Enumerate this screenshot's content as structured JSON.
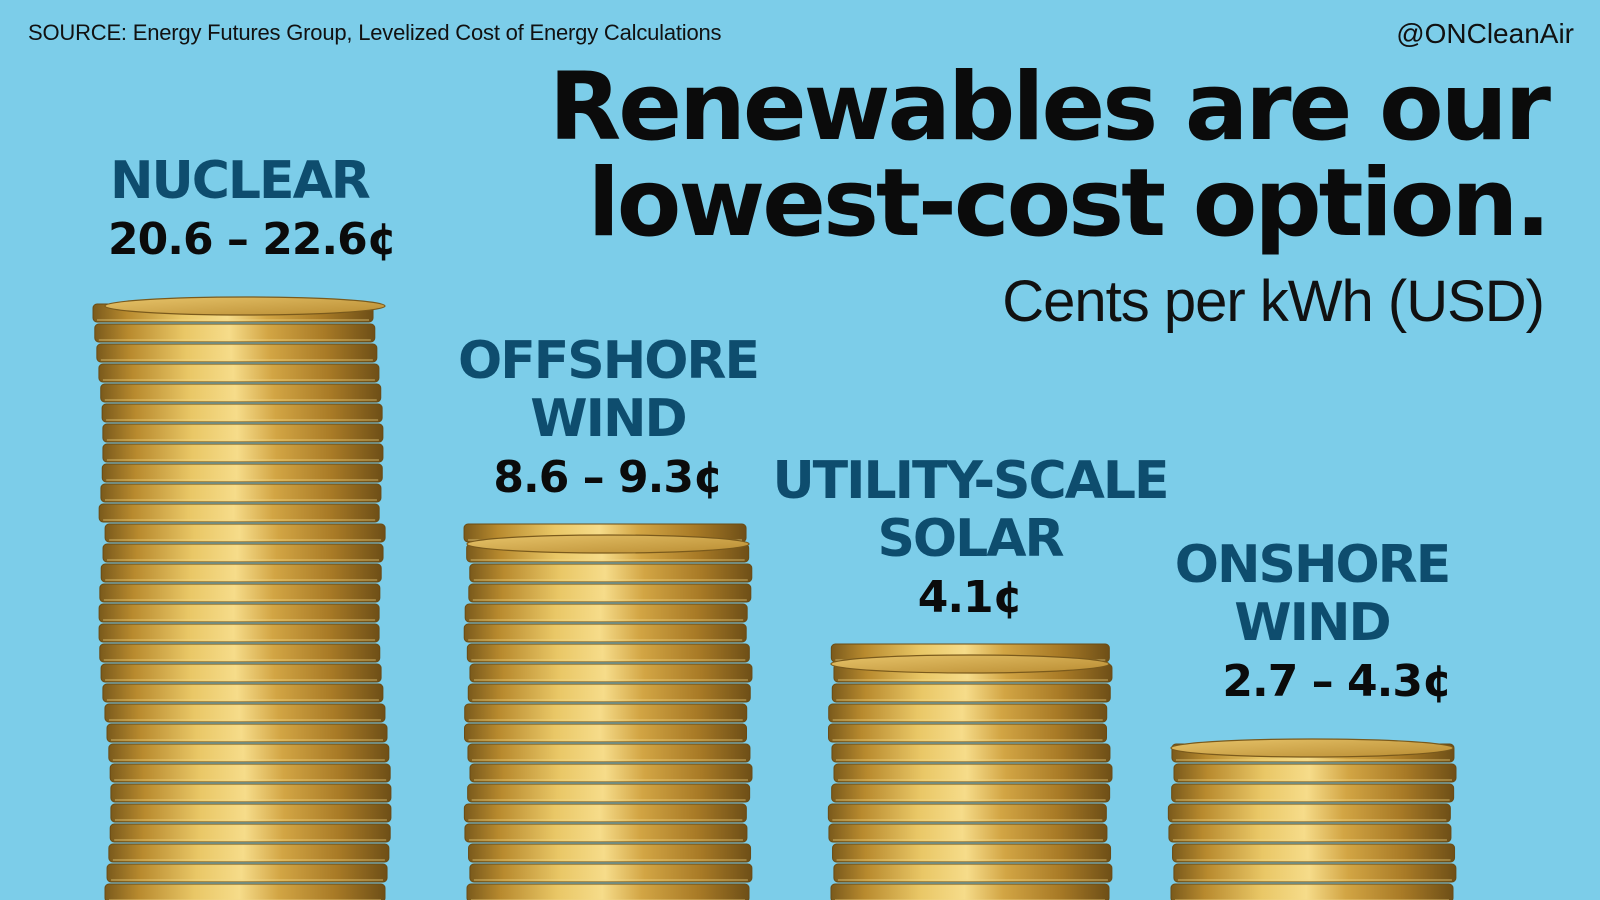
{
  "header": {
    "source": "SOURCE:  Energy Futures Group, Levelized Cost of Energy Calculations",
    "handle": "@ONCleanAir"
  },
  "title_lines": [
    "Renewables are our",
    "lowest-cost option."
  ],
  "subtitle": "Cents per kWh (USD)",
  "colors": {
    "background": "#7ccde9",
    "category_label": "#0e4d6e",
    "value_label": "#0b0b0b",
    "coin_gold": "#c9a13a"
  },
  "chart_data": {
    "type": "bar",
    "title": "Renewables are our lowest-cost option.",
    "ylabel": "Cents per kWh (USD)",
    "categories": [
      "NUCLEAR",
      "OFFSHORE WIND",
      "UTILITY-SCALE SOLAR",
      "ONSHORE WIND"
    ],
    "category_lines": [
      [
        "NUCLEAR"
      ],
      [
        "OFFSHORE",
        "WIND"
      ],
      [
        "UTILITY-SCALE",
        "SOLAR"
      ],
      [
        "ONSHORE",
        "WIND"
      ]
    ],
    "ranges": [
      [
        20.6,
        22.6
      ],
      [
        8.6,
        9.3
      ],
      [
        4.1,
        4.1
      ],
      [
        2.7,
        4.3
      ]
    ],
    "value_labels": [
      "20.6 – 22.6¢",
      "8.6 – 9.3¢",
      "4.1¢",
      "2.7 – 4.3¢"
    ],
    "bar_style": "stacked gold coins",
    "grid": false,
    "legend": "none"
  }
}
